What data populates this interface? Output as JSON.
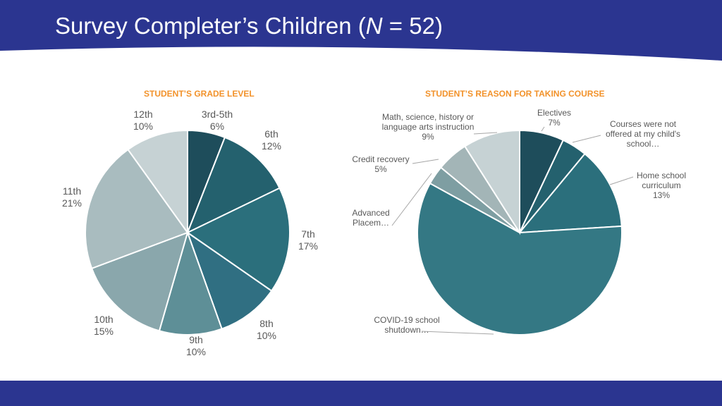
{
  "slide": {
    "title_main": "Survey Completer’s Children (",
    "title_n": "N",
    "title_rest": " = 52)"
  },
  "colors": {
    "header": "#2b3590",
    "footer": "#2b3590",
    "chart_title": "#f2922a"
  },
  "chart_data": [
    {
      "type": "pie",
      "title": "STUDENT’S GRADE LEVEL",
      "categories": [
        "3rd-5th",
        "6th",
        "7th",
        "8th",
        "9th",
        "10th",
        "11th",
        "12th"
      ],
      "values": [
        6,
        12,
        17,
        10,
        10,
        15,
        21,
        10
      ],
      "value_labels": [
        "6%",
        "12%",
        "17%",
        "10%",
        "10%",
        "15%",
        "21%",
        "10%"
      ],
      "colors": [
        "#1e4d5b",
        "#24616e",
        "#2b6f7c",
        "#306f82",
        "#5e8f97",
        "#8aa7ac",
        "#a9bcbf",
        "#c6d2d4"
      ]
    },
    {
      "type": "pie",
      "title": "STUDENT’S REASON FOR TAKING COURSE",
      "categories": [
        "Electives",
        "Courses were not offered at my child's school…",
        "Home school curriculum",
        "COVID-19 school shutdown…",
        "Advanced Placem…",
        "Credit recovery",
        "Math, science, history or language arts instruction"
      ],
      "values": [
        7,
        4,
        13,
        59,
        3,
        5,
        9
      ],
      "value_labels": [
        "7%",
        "",
        "13%",
        "",
        "",
        "5%",
        "9%"
      ],
      "colors": [
        "#1e4d5b",
        "#24616e",
        "#2b6f7c",
        "#347884",
        "#7e9ea2",
        "#a3b5b7",
        "#c6d2d4"
      ]
    }
  ]
}
